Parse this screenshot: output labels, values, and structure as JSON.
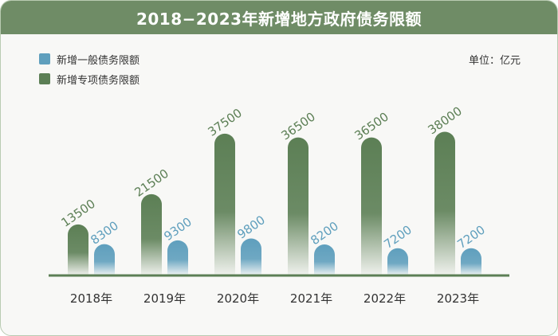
{
  "title": "2018−2023年新增地方政府债务限额",
  "unit": "单位：亿元",
  "colors": {
    "header": "#6f8c66",
    "general": "#5f9fbd",
    "special": "#5c7f55",
    "axis": "#5c7f55"
  },
  "chart_data": {
    "type": "bar",
    "categories": [
      "2018年",
      "2019年",
      "2020年",
      "2021年",
      "2022年",
      "2023年"
    ],
    "series": [
      {
        "name": "新增专项债务限额",
        "values": [
          13500,
          21500,
          37500,
          36500,
          36500,
          38000
        ]
      },
      {
        "name": "新增一般债务限额",
        "values": [
          8300,
          9300,
          9800,
          8200,
          7200,
          7200
        ]
      }
    ],
    "legend": [
      {
        "label": "新增一般债务限额",
        "color": "#5f9fbd"
      },
      {
        "label": "新增专项债务限额",
        "color": "#5c7f55"
      }
    ],
    "ylim": [
      0,
      40000
    ],
    "legend_position": "top-left",
    "grid": false
  }
}
